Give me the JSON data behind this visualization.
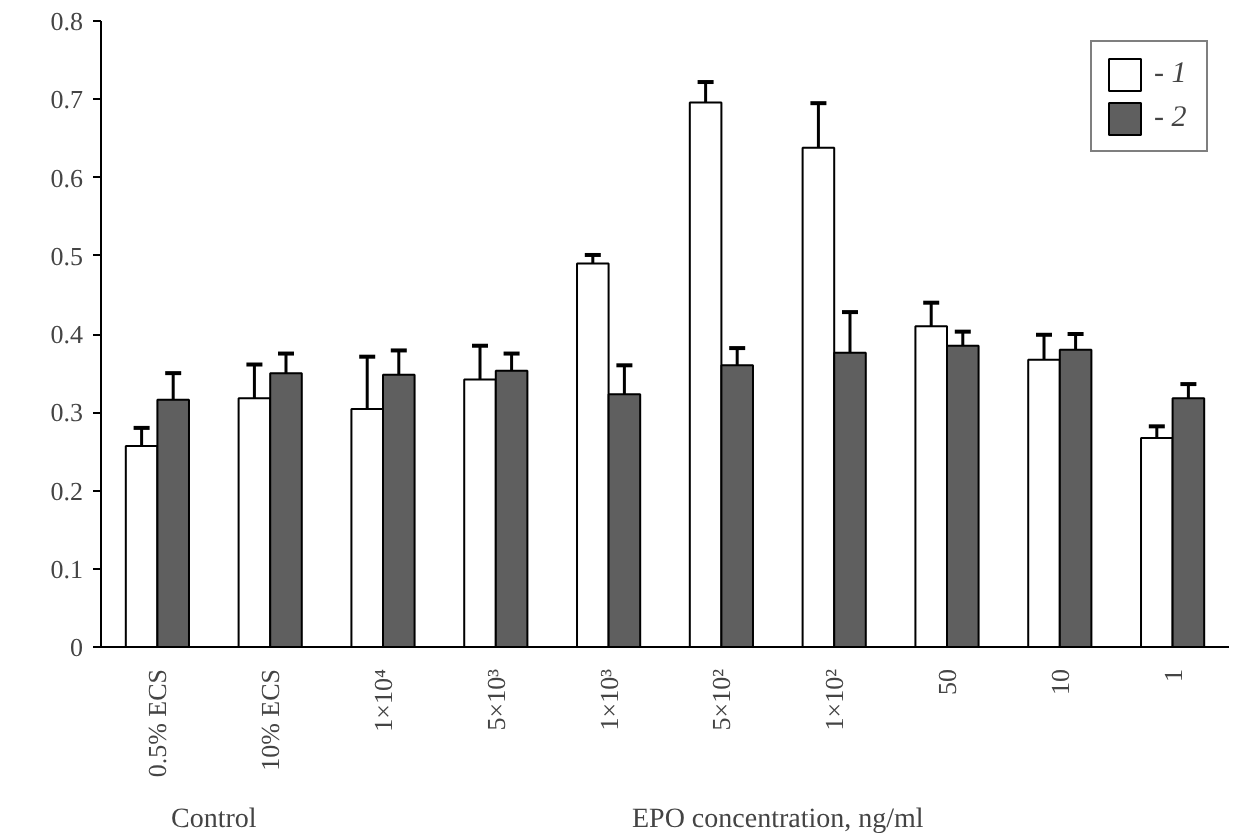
{
  "chart_data": {
    "type": "bar",
    "categories": [
      "0.5% ECS",
      "10% ECS",
      "1×10⁴",
      "5×10³",
      "1×10³",
      "5×10²",
      "1×10²",
      "50",
      "10",
      "1"
    ],
    "series": [
      {
        "name": "- 1",
        "color": "#ffffff",
        "values": [
          0.257,
          0.318,
          0.304,
          0.342,
          0.49,
          0.696,
          0.638,
          0.41,
          0.367,
          0.267
        ],
        "errors": [
          0.023,
          0.043,
          0.067,
          0.043,
          0.011,
          0.026,
          0.057,
          0.03,
          0.032,
          0.015
        ]
      },
      {
        "name": "- 2",
        "color": "#5f5f5f",
        "values": [
          0.316,
          0.35,
          0.348,
          0.353,
          0.323,
          0.36,
          0.376,
          0.385,
          0.38,
          0.318
        ],
        "errors": [
          0.034,
          0.025,
          0.031,
          0.022,
          0.037,
          0.022,
          0.052,
          0.018,
          0.02,
          0.018
        ]
      }
    ],
    "ylim": [
      0,
      0.8
    ],
    "yticks": [
      0,
      0.1,
      0.2,
      0.3,
      0.4,
      0.5,
      0.6,
      0.7,
      0.8
    ],
    "grid": false,
    "legend": "top right",
    "annotations": [
      "Control",
      "EPO concentration, ng/ml"
    ]
  }
}
